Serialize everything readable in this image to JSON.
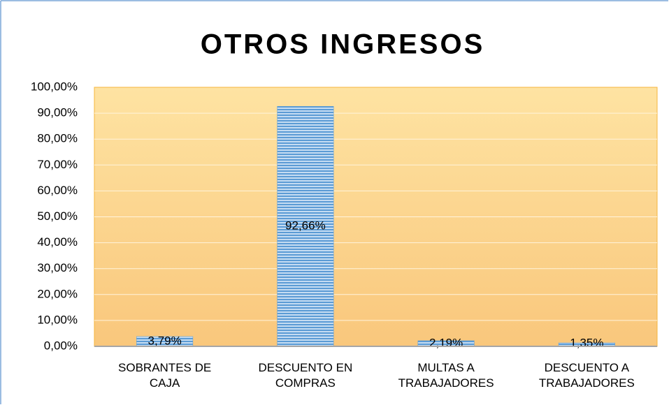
{
  "chart_data": {
    "type": "bar",
    "title": "OTROS INGRESOS",
    "categories": [
      "SOBRANTES DE CAJA",
      "DESCUENTO EN COMPRAS",
      "MULTAS A TRABAJADORES",
      "DESCUENTO A TRABAJADORES"
    ],
    "values": [
      3.79,
      92.66,
      2.19,
      1.35
    ],
    "value_labels": [
      "3,79%",
      "92,66%",
      "2,19%",
      "1,35%"
    ],
    "color": "#5b9bd5",
    "ylim": [
      0,
      100
    ],
    "yticks": [
      {
        "value": 0,
        "label": "0,00%"
      },
      {
        "value": 10,
        "label": "10,00%"
      },
      {
        "value": 20,
        "label": "20,00%"
      },
      {
        "value": 30,
        "label": "30,00%"
      },
      {
        "value": 40,
        "label": "40,00%"
      },
      {
        "value": 50,
        "label": "50,00%"
      },
      {
        "value": 60,
        "label": "60,00%"
      },
      {
        "value": 70,
        "label": "70,00%"
      },
      {
        "value": 80,
        "label": "80,00%"
      },
      {
        "value": 90,
        "label": "90,00%"
      },
      {
        "value": 100,
        "label": "100,00%"
      }
    ],
    "grid": true
  }
}
